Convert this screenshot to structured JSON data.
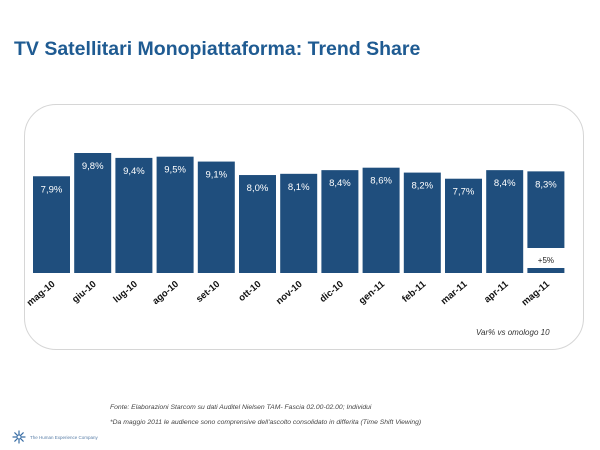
{
  "title": "TV Satellitari Monopiattaforma: Trend Share",
  "note": "Var% vs omologo 10",
  "footnotes": {
    "source": "Fonte: Elaborazioni Starcom su dati Auditel Nielsen TAM- Fascia 02.00-02.00; Individui",
    "remark": "*Da maggio 2011 le audience sono comprensive dell'ascolto consolidato in differita (Time Shift Viewing)"
  },
  "brand": {
    "tagline": "The Human Experience Company",
    "logo_icon": "star-logo-icon",
    "color": "#1f5b92"
  },
  "chart_data": {
    "type": "bar",
    "title": "TV Satellitari Monopiattaforma: Trend Share",
    "categories": [
      "mag-10",
      "giu-10",
      "lug-10",
      "ago-10",
      "set-10",
      "ott-10",
      "nov-10",
      "dic-10",
      "gen-11",
      "feb-11",
      "mar-11",
      "apr-11",
      "mag-11"
    ],
    "values": [
      7.9,
      9.8,
      9.4,
      9.5,
      9.1,
      8.0,
      8.1,
      8.4,
      8.6,
      8.2,
      7.7,
      8.4,
      8.3
    ],
    "value_labels": [
      "7,9%",
      "9,8%",
      "9,4%",
      "9,5%",
      "9,1%",
      "8,0%",
      "8,1%",
      "8,4%",
      "8,6%",
      "8,2%",
      "7,7%",
      "8,4%",
      "8,3%"
    ],
    "variation": {
      "category": "mag-11",
      "label": "+5%"
    },
    "bar_color": "#1f4e7d",
    "ylim": [
      0,
      9.8
    ],
    "grid": false,
    "legend": false
  }
}
